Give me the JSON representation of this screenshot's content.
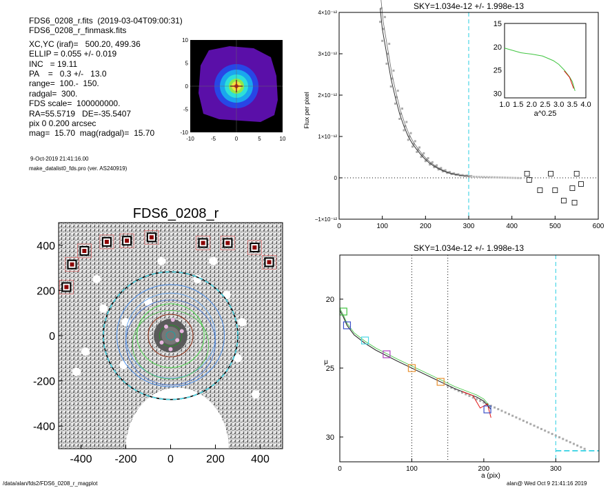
{
  "info": {
    "lines": [
      "FDS6_0208_r.fits  (2019-03-04T09:00:31)",
      "FDS6_0208_r_finmask.fits",
      "XC,YC (iraf)=   500.20, 499.36",
      "ELLIP = 0.055 +/- 0.019",
      "INC   = 19.11",
      "PA    =   0.3 +/-   13.0",
      "range=  100.-  150.",
      "radgal=  300.",
      "FDS scale=  100000000.",
      "RA=55.5719   DE=-35.5407",
      "pix 0 0.200 arcsec",
      "mag=  15.70  mag(radgal)=  15.70"
    ],
    "date": "9-Oct-2019 21:41:16.00",
    "program": "make_datalist0_fds.pro (ver. AS240919)"
  },
  "footer": {
    "path": "/data/alan/fds2/FDS6_0208_r_magplot",
    "user": "alan@  Wed Oct  9 21:41:16 2019"
  },
  "colors": {
    "cyan": "#49d6e6",
    "green": "#3ec43e",
    "red": "#e01010",
    "gray": "#999999",
    "purple": "#5a0fa8",
    "blue": "#1f5ee8"
  },
  "chart_data": [
    {
      "id": "thumbnail",
      "type": "heatmap",
      "xlim": [
        -10,
        10
      ],
      "ylim": [
        -10,
        10
      ],
      "xticks": [
        "-10",
        "-5",
        "0",
        "5",
        "10"
      ],
      "yticks": [
        "10",
        "5",
        "0",
        "-5",
        "-10"
      ],
      "contour_levels": [
        "purple",
        "blue",
        "cyan",
        "green",
        "yellow",
        "red"
      ]
    },
    {
      "id": "image",
      "type": "scatter",
      "title": "FDS6_0208_r",
      "xlim": [
        -500,
        500
      ],
      "ylim": [
        -500,
        500
      ],
      "xticks": [
        "-400",
        "-200",
        "0",
        "200",
        "400"
      ],
      "yticks": [
        "400",
        "200",
        "0",
        "-200",
        "-400"
      ],
      "ellipse_radii": [
        300,
        240,
        200,
        150,
        100,
        50,
        20
      ],
      "masked_stars": [
        {
          "x": -465,
          "y": 215
        },
        {
          "x": -440,
          "y": 315
        },
        {
          "x": -385,
          "y": 375
        },
        {
          "x": -285,
          "y": 415
        },
        {
          "x": -195,
          "y": 420
        },
        {
          "x": -85,
          "y": 435
        },
        {
          "x": 145,
          "y": 410
        },
        {
          "x": 255,
          "y": 410
        },
        {
          "x": 375,
          "y": 390
        },
        {
          "x": 440,
          "y": 325
        }
      ]
    },
    {
      "id": "flux_profile",
      "type": "line",
      "title": "SKY=1.034e-12 +/- 1.998e-13",
      "xlabel": "",
      "ylabel": "Flux per pixel",
      "xlim": [
        0,
        600
      ],
      "ylim": [
        -1e-12,
        4e-12
      ],
      "xticks": [
        "0",
        "100",
        "200",
        "300",
        "400",
        "500",
        "600"
      ],
      "yticks": [
        "−1×10⁻¹²",
        "0",
        "1×10⁻¹²",
        "2×10⁻¹²",
        "3×10⁻¹²",
        "4×10⁻¹²"
      ],
      "sky_radius": 300,
      "series": [
        {
          "x": [
            95,
            100,
            110,
            120,
            130,
            140,
            150,
            160,
            170,
            180,
            190,
            200,
            210,
            220,
            230,
            240,
            250,
            260,
            270,
            280,
            290,
            300
          ],
          "values": [
            4.1e-12,
            3.6e-12,
            3e-12,
            2.4e-12,
            1.95e-12,
            1.55e-12,
            1.25e-12,
            1e-12,
            8.2e-13,
            6.8e-13,
            5.5e-13,
            4.4e-13,
            3.5e-13,
            2.8e-13,
            2.2e-13,
            1.7e-13,
            1.3e-13,
            1e-13,
            8e-14,
            6e-14,
            5e-14,
            4e-14
          ]
        }
      ],
      "outliers": [
        {
          "x": 435,
          "y": 1e-13
        },
        {
          "x": 440,
          "y": -5e-14
        },
        {
          "x": 465,
          "y": -3e-13
        },
        {
          "x": 490,
          "y": 1e-13
        },
        {
          "x": 500,
          "y": -3e-13
        },
        {
          "x": 520,
          "y": -5.5e-13
        },
        {
          "x": 540,
          "y": -2.5e-13
        },
        {
          "x": 545,
          "y": -6e-13
        },
        {
          "x": 550,
          "y": 1e-13
        },
        {
          "x": 560,
          "y": -1.5e-13
        }
      ],
      "inset": {
        "xlabel": "a^0.25",
        "xlim": [
          1.0,
          4.0
        ],
        "ylim": [
          15,
          31
        ],
        "xticks": [
          "1.0",
          "1.5",
          "2.0",
          "2.5",
          "3.0",
          "3.5",
          "4.0"
        ],
        "yticks": [
          "15",
          "20",
          "25",
          "30"
        ],
        "x": [
          1.0,
          1.3,
          1.6,
          2.0,
          2.4,
          2.8,
          3.0,
          3.2,
          3.4,
          3.5,
          3.6
        ],
        "values": [
          20.3,
          20.8,
          21.3,
          21.6,
          22.0,
          23.0,
          23.8,
          25.0,
          26.5,
          27.5,
          29.5
        ]
      }
    },
    {
      "id": "sb_profile",
      "type": "line",
      "title": "SKY=1.034e-12 +/- 1.998e-13",
      "xlabel": "a (pix)",
      "ylabel": "μ",
      "xlim": [
        0,
        360
      ],
      "ylim": [
        31.8,
        16.8
      ],
      "xticks": [
        "0",
        "100",
        "200",
        "300"
      ],
      "yticks": [
        "20",
        "25",
        "30"
      ],
      "vlines": [
        100,
        150,
        300
      ],
      "sky_level": 31.0,
      "series": [
        {
          "x": [
            0,
            5,
            10,
            20,
            35,
            50,
            65,
            80,
            100,
            120,
            140,
            160,
            175,
            190,
            200,
            210
          ],
          "values": [
            20.8,
            21.3,
            21.9,
            22.6,
            23.2,
            23.7,
            24.1,
            24.5,
            25.0,
            25.5,
            26.0,
            26.5,
            26.8,
            27.1,
            27.4,
            28.0
          ]
        }
      ],
      "markers": [
        {
          "x": 5,
          "y": 20.9,
          "color": "green"
        },
        {
          "x": 10,
          "y": 21.9,
          "color": "blue"
        },
        {
          "x": 35,
          "y": 23.0,
          "color": "cyan"
        },
        {
          "x": 65,
          "y": 24.0,
          "color": "purple"
        },
        {
          "x": 100,
          "y": 25.0,
          "color": "orange"
        },
        {
          "x": 140,
          "y": 26.0,
          "color": "orange"
        },
        {
          "x": 205,
          "y": 28.0,
          "color": "blue"
        }
      ]
    }
  ]
}
